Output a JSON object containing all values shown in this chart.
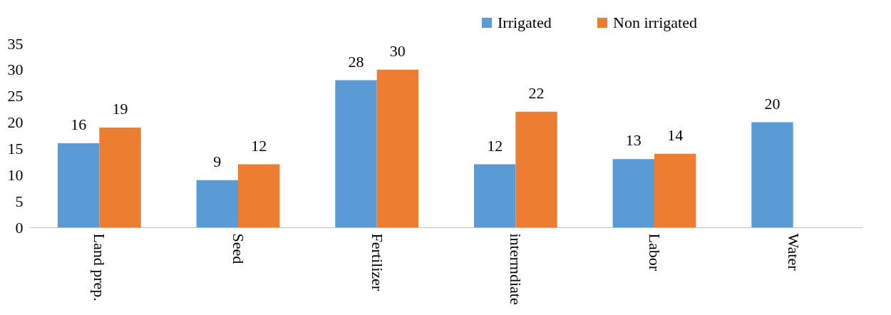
{
  "chart_data": {
    "type": "bar",
    "categories": [
      "Land prep.",
      "Seed",
      "Fertilizer",
      "intermdiate",
      "Labor",
      "Water"
    ],
    "series": [
      {
        "name": "Irrigated",
        "color": "#5b9bd5",
        "values": [
          16,
          9,
          28,
          12,
          13,
          20
        ]
      },
      {
        "name": "Non irrigated",
        "color": "#ed7d31",
        "values": [
          19,
          12,
          30,
          22,
          14,
          null
        ]
      }
    ],
    "ylim": [
      0,
      35
    ],
    "yticks": [
      0,
      5,
      10,
      15,
      20,
      25,
      30,
      35
    ],
    "data_labels": true,
    "legend": "top right",
    "grid": false
  }
}
